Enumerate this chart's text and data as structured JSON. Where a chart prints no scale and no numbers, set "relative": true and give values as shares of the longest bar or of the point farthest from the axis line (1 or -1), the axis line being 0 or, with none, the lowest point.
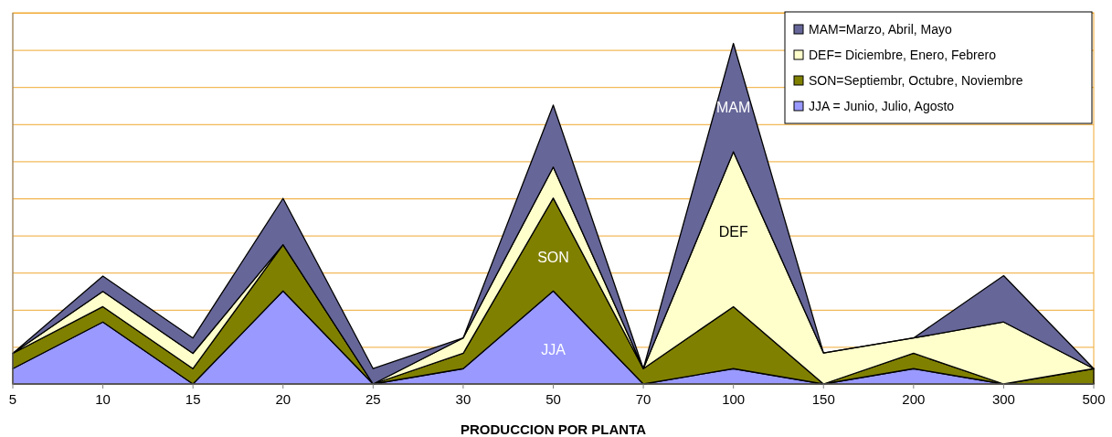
{
  "chart_data": {
    "type": "area",
    "stacked": true,
    "relative": true,
    "xlabel": "PRODUCCION POR PLANTA",
    "categories": [
      "5",
      "10",
      "15",
      "20",
      "25",
      "30",
      "50",
      "70",
      "100",
      "150",
      "200",
      "300",
      "500"
    ],
    "series": [
      {
        "name": "JJA = Junio, Julio, Agosto",
        "color": "#9999ff",
        "values": [
          0.045,
          0.182,
          0,
          0.273,
          0,
          0.045,
          0.273,
          0,
          0.045,
          0,
          0.045,
          0,
          0
        ]
      },
      {
        "name": "SON=Septiembr, Octubre, Noviembre",
        "color": "#808000",
        "values": [
          0.045,
          0.045,
          0.045,
          0.136,
          0,
          0.045,
          0.273,
          0.045,
          0.182,
          0,
          0.045,
          0,
          0.045
        ]
      },
      {
        "name": "DEF= Diciembre, Enero, Febrero",
        "color": "#ffffcc",
        "values": [
          0,
          0.045,
          0.045,
          0,
          0,
          0.045,
          0.091,
          0,
          0.455,
          0.091,
          0.045,
          0.182,
          0
        ]
      },
      {
        "name": "MAM=Marzo, Abril, Mayo",
        "color": "#666699",
        "values": [
          0,
          0.045,
          0.045,
          0.136,
          0.045,
          0,
          0.182,
          0,
          0.318,
          0,
          0,
          0.136,
          0
        ]
      }
    ],
    "annotations": [
      "MAM",
      "DEF",
      "SON",
      "JJA"
    ],
    "legend": "top right"
  }
}
